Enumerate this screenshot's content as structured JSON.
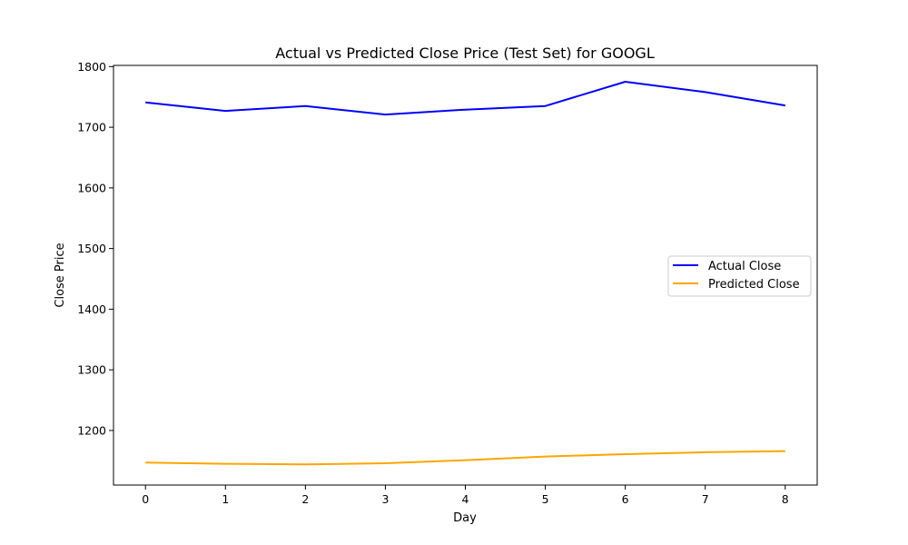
{
  "chart_data": {
    "type": "line",
    "title": "Actual vs Predicted Close Price (Test Set) for GOOGL",
    "xlabel": "Day",
    "ylabel": "Close Price",
    "x": [
      0,
      1,
      2,
      3,
      4,
      5,
      6,
      7,
      8
    ],
    "xlim": [
      -0.4,
      8.4
    ],
    "ylim": [
      1110,
      1802
    ],
    "xticks": [
      "0",
      "1",
      "2",
      "3",
      "4",
      "5",
      "6",
      "7",
      "8"
    ],
    "yticks": [
      "1200",
      "1300",
      "1400",
      "1500",
      "1600",
      "1700",
      "1800"
    ],
    "grid": false,
    "legend_position": "center-right",
    "series": [
      {
        "name": "Actual Close",
        "color": "#0000ff",
        "values": [
          1741,
          1727,
          1735,
          1721,
          1729,
          1735,
          1775,
          1758,
          1736
        ]
      },
      {
        "name": "Predicted Close",
        "color": "#ffa500",
        "values": [
          1147,
          1145,
          1144,
          1146,
          1151,
          1157,
          1161,
          1164,
          1166
        ]
      }
    ]
  }
}
